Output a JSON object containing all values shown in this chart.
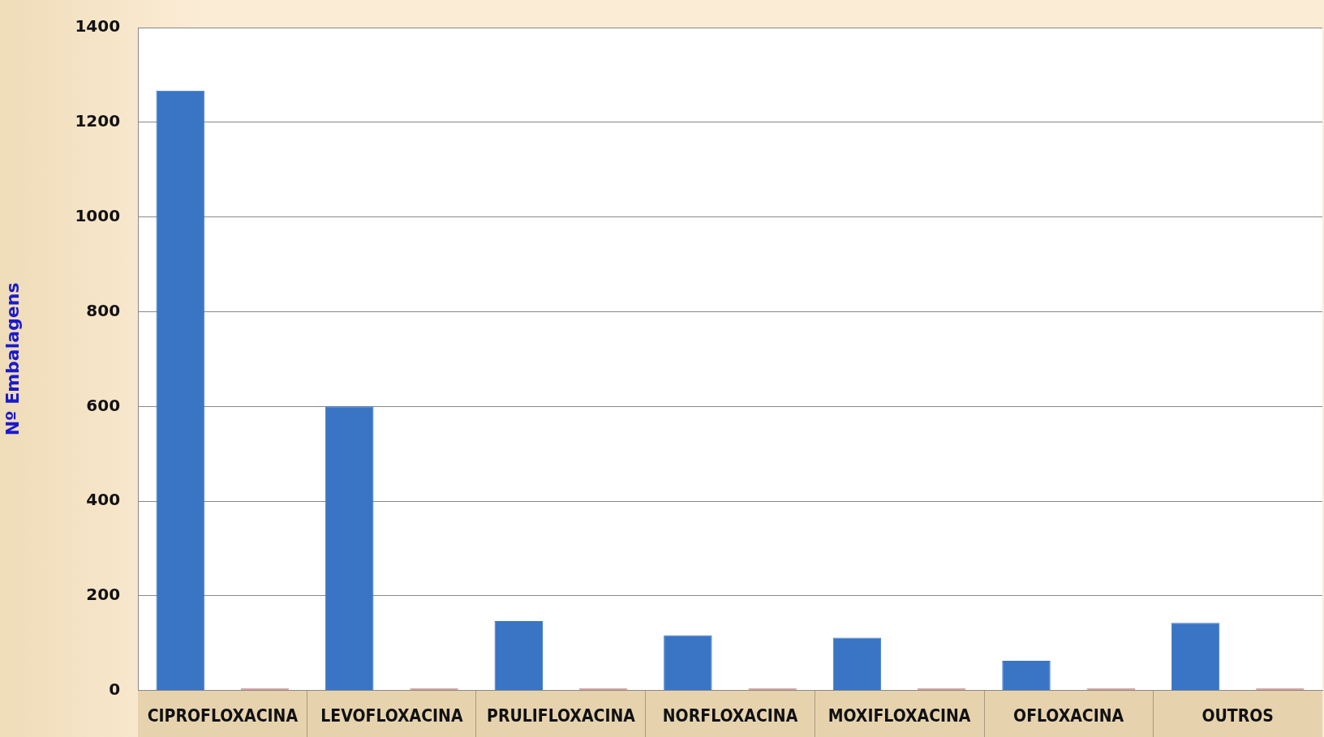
{
  "chart_data": {
    "type": "bar",
    "ylabel": "Nº Embalagens",
    "categories": [
      "CIPROFLOXACINA",
      "LEVOFLOXACINA",
      "PRULIFLOXACINA",
      "NORFLOXACINA",
      "MOXIFLOXACINA",
      "OFLOXACINA",
      "OUTROS"
    ],
    "series": [
      {
        "color": "#3a74c4",
        "values": [
          1267,
          600,
          147,
          117,
          112,
          63,
          143
        ]
      },
      {
        "color": "#d4a5a3",
        "values": [
          5,
          5,
          5,
          5,
          5,
          5,
          5
        ]
      }
    ],
    "ylim": [
      0,
      1400
    ],
    "yticks": [
      0,
      200,
      400,
      600,
      800,
      1000,
      1200,
      1400
    ],
    "grid": "y",
    "legend": false
  }
}
